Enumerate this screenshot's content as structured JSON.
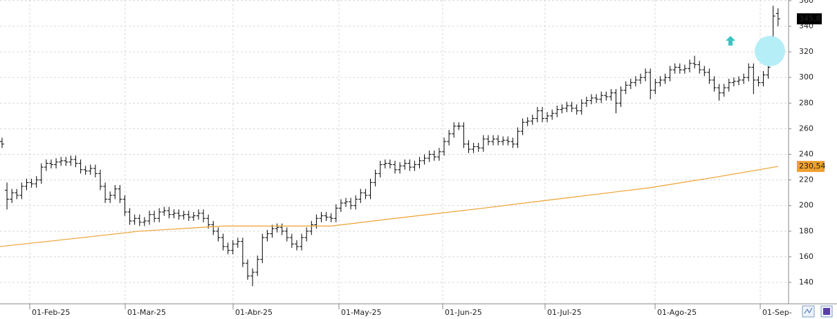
{
  "chart_data": {
    "type": "ohlc",
    "ylim": [
      123.3,
      360.5
    ],
    "yticks": [
      140,
      160,
      180,
      200,
      220,
      240,
      260,
      280,
      300,
      320,
      340,
      360
    ],
    "xlim": [
      -0.42,
      160.14
    ],
    "xticks": [
      {
        "value": 5.63,
        "label": "01-Feb-25"
      },
      {
        "value": 25.07,
        "label": "01-Mar-25"
      },
      {
        "value": 47.04,
        "label": "01-Abr-25"
      },
      {
        "value": 68.59,
        "label": "01-May-25"
      },
      {
        "value": 89.72,
        "label": "01-Jun-25"
      },
      {
        "value": 110.56,
        "label": "01-Jul-25"
      },
      {
        "value": 132.96,
        "label": "01-Ago-25"
      },
      {
        "value": 154.37,
        "label": "01-Sep-"
      }
    ],
    "grid": true,
    "ohlc": {
      "color": "#000000",
      "open": [
        250,
        212,
        205,
        210,
        208,
        215,
        218,
        217,
        220,
        230,
        233,
        232,
        234,
        235,
        234,
        236,
        233,
        228,
        227,
        229,
        225,
        215,
        205,
        208,
        213,
        205,
        195,
        188,
        190,
        187,
        188,
        193,
        190,
        195,
        196,
        193,
        194,
        192,
        193,
        191,
        192,
        194,
        190,
        185,
        180,
        175,
        168,
        165,
        170,
        172,
        155,
        145,
        148,
        158,
        175,
        178,
        182,
        183,
        180,
        175,
        170,
        168,
        175,
        180,
        185,
        190,
        192,
        191,
        190,
        198,
        202,
        203,
        200,
        205,
        210,
        208,
        218,
        225,
        232,
        233,
        232,
        228,
        231,
        233,
        230,
        232,
        235,
        237,
        240,
        238,
        242,
        250,
        256,
        262,
        262,
        248,
        244,
        246,
        245,
        252,
        250,
        252,
        250,
        251,
        250,
        248,
        258,
        265,
        266,
        268,
        274,
        268,
        270,
        272,
        275,
        276,
        278,
        276,
        274,
        280,
        282,
        284,
        283,
        286,
        285,
        288,
        280,
        290,
        294,
        296,
        298,
        300,
        304,
        290,
        296,
        298,
        300,
        306,
        308,
        306,
        307,
        311,
        310,
        306,
        304,
        298,
        292,
        288,
        292,
        296,
        297,
        298,
        300,
        308,
        298,
        296,
        302,
        332,
        350
      ],
      "high": [
        253,
        218,
        213,
        213,
        218,
        221,
        221,
        223,
        233,
        236,
        236,
        237,
        238,
        238,
        239,
        239,
        236,
        231,
        232,
        232,
        228,
        218,
        211,
        216,
        216,
        208,
        198,
        193,
        193,
        191,
        196,
        196,
        198,
        199,
        199,
        197,
        197,
        196,
        196,
        195,
        197,
        197,
        193,
        188,
        183,
        178,
        171,
        173,
        175,
        175,
        158,
        151,
        161,
        178,
        181,
        185,
        186,
        186,
        183,
        178,
        173,
        178,
        183,
        188,
        193,
        195,
        195,
        194,
        201,
        205,
        206,
        206,
        208,
        213,
        213,
        221,
        228,
        235,
        236,
        236,
        235,
        234,
        236,
        236,
        235,
        238,
        240,
        243,
        243,
        245,
        253,
        259,
        265,
        265,
        265,
        251,
        249,
        249,
        255,
        255,
        255,
        255,
        254,
        254,
        253,
        261,
        268,
        269,
        271,
        277,
        277,
        273,
        275,
        278,
        279,
        281,
        281,
        279,
        283,
        285,
        287,
        287,
        289,
        289,
        291,
        291,
        293,
        297,
        299,
        301,
        303,
        307,
        307,
        299,
        301,
        303,
        309,
        311,
        311,
        310,
        314,
        317,
        313,
        309,
        307,
        301,
        295,
        295,
        299,
        300,
        301,
        303,
        311,
        311,
        301,
        305,
        311,
        356,
        354
      ],
      "low": [
        245,
        197,
        202,
        205,
        205,
        212,
        214,
        214,
        217,
        227,
        229,
        229,
        231,
        231,
        231,
        230,
        225,
        224,
        224,
        222,
        212,
        202,
        202,
        205,
        202,
        192,
        185,
        185,
        184,
        184,
        185,
        187,
        187,
        192,
        190,
        190,
        189,
        189,
        188,
        188,
        189,
        187,
        182,
        177,
        172,
        165,
        162,
        162,
        167,
        152,
        142,
        137,
        145,
        155,
        172,
        175,
        179,
        177,
        172,
        167,
        165,
        165,
        172,
        177,
        182,
        187,
        188,
        187,
        187,
        195,
        199,
        197,
        197,
        202,
        205,
        205,
        215,
        222,
        229,
        229,
        225,
        225,
        228,
        227,
        227,
        229,
        232,
        234,
        235,
        235,
        239,
        247,
        253,
        259,
        245,
        241,
        241,
        242,
        242,
        247,
        247,
        247,
        247,
        247,
        245,
        245,
        255,
        262,
        263,
        265,
        265,
        265,
        267,
        269,
        272,
        273,
        273,
        271,
        271,
        277,
        279,
        280,
        280,
        282,
        282,
        272,
        277,
        287,
        291,
        293,
        295,
        297,
        283,
        287,
        293,
        295,
        297,
        303,
        303,
        303,
        304,
        307,
        303,
        301,
        295,
        289,
        282,
        285,
        289,
        293,
        294,
        295,
        297,
        287,
        293,
        293,
        299,
        330,
        340
      ],
      "close": [
        248,
        205,
        210,
        208,
        215,
        218,
        217,
        220,
        230,
        233,
        232,
        234,
        235,
        234,
        236,
        233,
        228,
        227,
        229,
        225,
        215,
        205,
        208,
        213,
        205,
        195,
        188,
        190,
        187,
        188,
        193,
        190,
        195,
        196,
        193,
        194,
        192,
        193,
        191,
        192,
        194,
        190,
        185,
        180,
        175,
        168,
        165,
        170,
        172,
        155,
        145,
        148,
        158,
        175,
        178,
        182,
        183,
        180,
        175,
        170,
        168,
        175,
        180,
        185,
        190,
        192,
        191,
        190,
        198,
        202,
        203,
        200,
        205,
        210,
        208,
        218,
        225,
        232,
        233,
        232,
        228,
        231,
        233,
        230,
        232,
        235,
        237,
        240,
        238,
        242,
        250,
        256,
        262,
        262,
        248,
        244,
        246,
        245,
        252,
        250,
        252,
        250,
        251,
        250,
        248,
        258,
        265,
        266,
        268,
        274,
        268,
        270,
        272,
        275,
        276,
        278,
        276,
        274,
        280,
        282,
        284,
        283,
        286,
        285,
        288,
        280,
        290,
        294,
        296,
        298,
        300,
        304,
        290,
        296,
        298,
        300,
        306,
        308,
        306,
        307,
        311,
        310,
        306,
        304,
        298,
        292,
        288,
        292,
        296,
        297,
        298,
        300,
        308,
        298,
        296,
        302,
        308,
        348,
        345.8
      ],
      "last_label": "345,8"
    },
    "moving_average": {
      "color": "#f0a030",
      "x": [
        -0.42,
        14,
        28,
        45,
        67,
        80,
        98,
        115,
        132,
        145,
        158
      ],
      "values": [
        168,
        174,
        180,
        184,
        184,
        190,
        198,
        206,
        214,
        222,
        230.54
      ],
      "last_label": "230,54"
    }
  }
}
